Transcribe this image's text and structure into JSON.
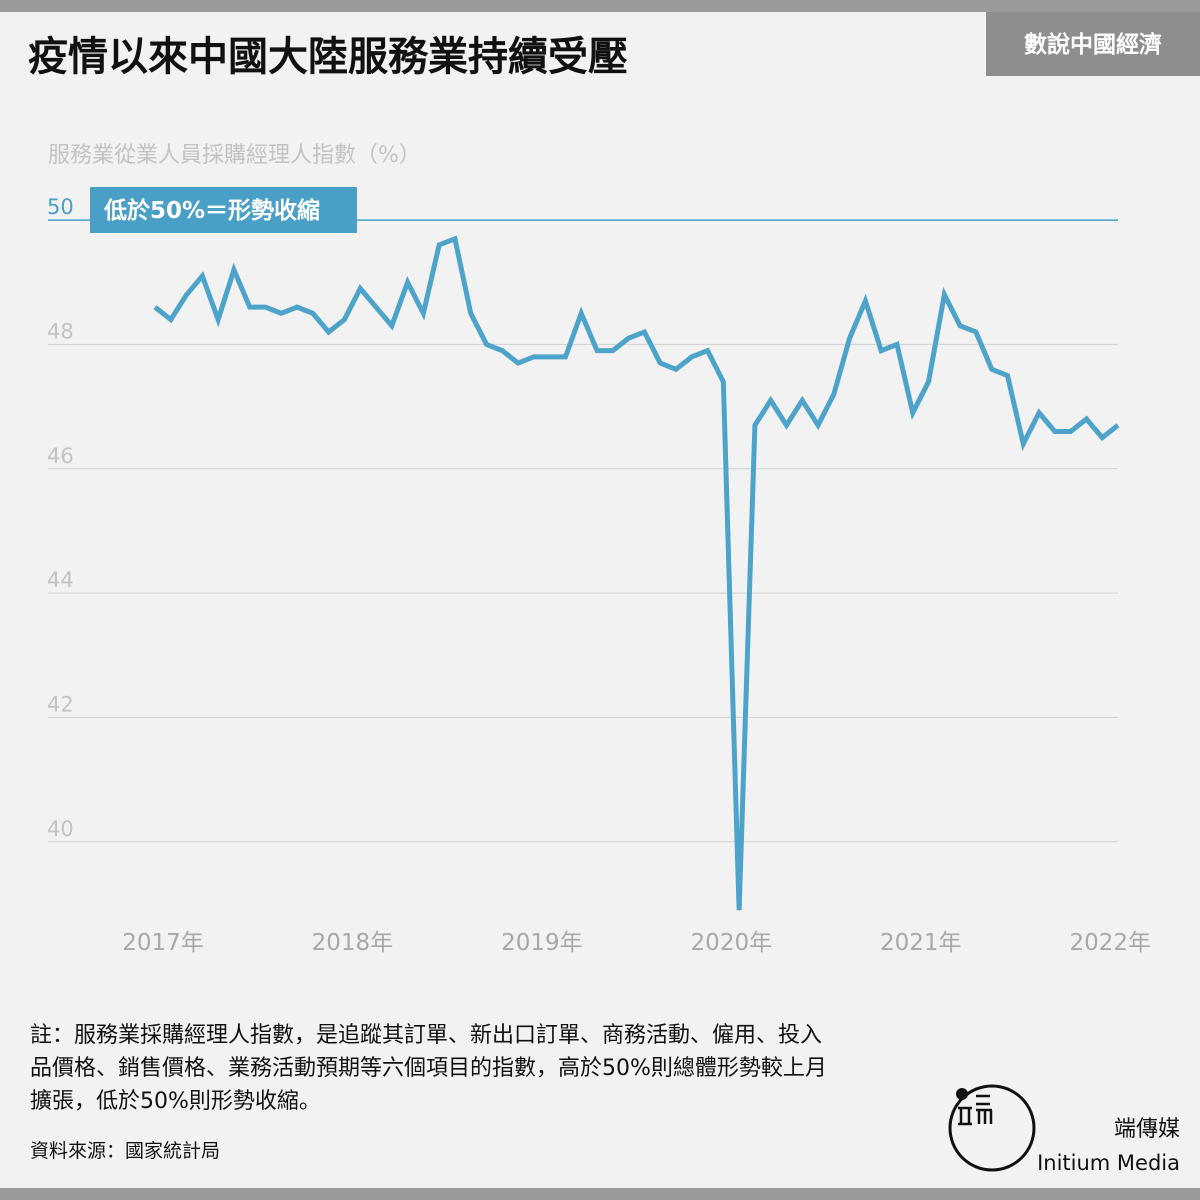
{
  "chart_data": {
    "type": "line",
    "title": "疫情以來中國大陸服務業持續受壓",
    "y_label": "服務業從業人員採購經理人指數（%）",
    "annotation": "低於50%＝形勢收縮",
    "categories": [
      "2017年",
      null,
      null,
      null,
      null,
      null,
      null,
      null,
      null,
      null,
      null,
      null,
      "2018年",
      null,
      null,
      null,
      null,
      null,
      null,
      null,
      null,
      null,
      null,
      null,
      "2019年",
      null,
      null,
      null,
      null,
      null,
      null,
      null,
      null,
      null,
      null,
      null,
      "2020年",
      null,
      null,
      null,
      null,
      null,
      null,
      null,
      null,
      null,
      null,
      null,
      "2021年",
      null,
      null,
      null,
      null,
      null,
      null,
      null,
      null,
      null,
      null,
      null,
      "2022年",
      null
    ],
    "series": [
      {
        "name": null,
        "color": "#4da3c9",
        "values": [
          48.6,
          48.4,
          48.8,
          49.1,
          48.4,
          49.2,
          48.6,
          48.6,
          48.5,
          48.6,
          48.5,
          48.2,
          48.4,
          48.9,
          48.6,
          48.3,
          49.0,
          48.5,
          49.6,
          49.7,
          48.5,
          48.0,
          47.9,
          47.7,
          47.8,
          47.8,
          47.8,
          48.5,
          47.9,
          47.9,
          48.1,
          48.2,
          47.7,
          47.6,
          47.8,
          47.9,
          47.4,
          38.9,
          46.7,
          47.1,
          46.7,
          47.1,
          46.7,
          47.2,
          48.1,
          48.7,
          47.9,
          48.0,
          46.9,
          47.4,
          48.8,
          48.3,
          48.2,
          47.6,
          47.5,
          46.4,
          46.9,
          46.6,
          46.6,
          46.8,
          46.5,
          46.7
        ]
      }
    ],
    "ylim": [
      38.5,
      50.5
    ],
    "yticks": [
      40,
      42,
      44,
      46,
      48,
      50
    ],
    "grid": true
  },
  "header_tag": "數說中國經濟",
  "notes": [
    "註：服務業採購經理人指數，是追蹤其訂單、新出口訂單、商務活動、僱用、投入",
    "品價格、銷售價格、業務活動預期等六個項目的指數，高於50%則總體形勢較上月",
    "擴張，低於50%則形勢收縮。"
  ],
  "source": "資料來源：國家統計局",
  "brand": {
    "name": "端傳媒",
    "name_en": "Initium Media"
  }
}
